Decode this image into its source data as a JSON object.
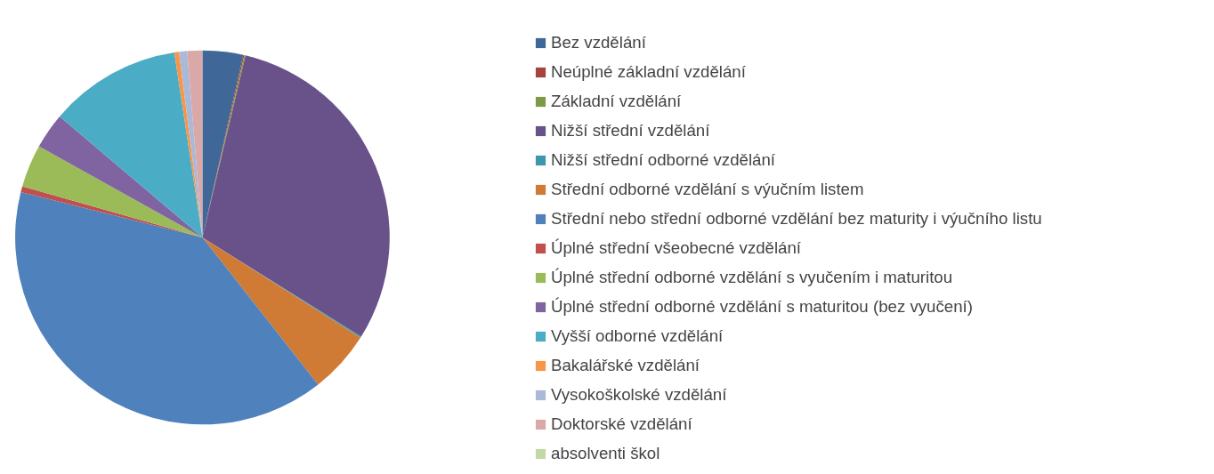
{
  "chart_data": {
    "type": "pie",
    "categories": [
      "Bez vzdělání",
      "Neúplné základní vzdělání",
      "Základní vzdělání",
      "Nižší střední vzdělání",
      "Nižší střední odborné vzdělání",
      "Střední odborné vzdělání s výučním listem",
      "Střední nebo střední odborné vzdělání bez maturity i výučního listu",
      "Úplné střední všeobecné vzdělání",
      "Úplné střední odborné vzdělání s vyučením i maturitou",
      "Úplné střední odborné vzdělání s maturitou (bez vyučení)",
      "Vyšší odborné vzdělání",
      "Bakalářské vzdělání",
      "Vysokoškolské vzdělání",
      "Doktorské vzdělání",
      "absolventi škol"
    ],
    "values": [
      3.5,
      0.1,
      0.1,
      30.2,
      0.1,
      5.4,
      39.5,
      0.5,
      3.7,
      3.1,
      11.4,
      0.4,
      0.7,
      1.3,
      null
    ],
    "colors": [
      "#3f6797",
      "#a5433f",
      "#7e9a47",
      "#69518a",
      "#3d98ac",
      "#cf7b36",
      "#4f81bd",
      "#c0504d",
      "#9bbb59",
      "#8064a2",
      "#4bacc6",
      "#f79646",
      "#aab9d8",
      "#d9a9a8",
      "#c4d8a7"
    ],
    "legend": "right"
  }
}
